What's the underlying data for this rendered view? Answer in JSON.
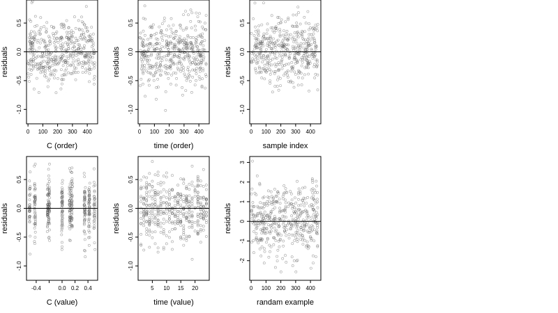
{
  "chart_data": [
    {
      "type": "scatter",
      "xlabel": "C (order)",
      "ylabel": "residuals",
      "xlim": [
        -10,
        470
      ],
      "ylim": [
        -1.25,
        0.9
      ],
      "xticks": [
        0,
        100,
        200,
        300,
        400
      ],
      "xtick_labels": [
        "0",
        "100",
        "200",
        "300",
        "400"
      ],
      "yticks": [
        -1.0,
        -0.5,
        0.0,
        0.5
      ],
      "ytick_labels": [
        "-1.0",
        "-0.5",
        "0.0",
        "0.5"
      ],
      "hline": 0,
      "points": {
        "n": 450,
        "x": [
          0,
          450
        ],
        "y_spread": 0.28,
        "seed": 11
      }
    },
    {
      "type": "scatter",
      "xlabel": "time (order)",
      "ylabel": "residuals",
      "xlim": [
        -10,
        470
      ],
      "ylim": [
        -1.25,
        0.9
      ],
      "xticks": [
        0,
        100,
        200,
        300,
        400
      ],
      "xtick_labels": [
        "0",
        "100",
        "200",
        "300",
        "400"
      ],
      "yticks": [
        -1.0,
        -0.5,
        0.0,
        0.5
      ],
      "ytick_labels": [
        "-1.0",
        "-0.5",
        "0.0",
        "0.5"
      ],
      "hline": 0,
      "points": {
        "n": 450,
        "x": [
          0,
          450
        ],
        "y_spread": 0.28,
        "seed": 23
      }
    },
    {
      "type": "scatter",
      "xlabel": "sample index",
      "ylabel": "residuals",
      "xlim": [
        -10,
        470
      ],
      "ylim": [
        -1.25,
        0.9
      ],
      "xticks": [
        0,
        100,
        200,
        300,
        400
      ],
      "xtick_labels": [
        "0",
        "100",
        "200",
        "300",
        "400"
      ],
      "yticks": [
        -1.0,
        -0.5,
        0.0,
        0.5
      ],
      "ytick_labels": [
        "-1.0",
        "-0.5",
        "0.0",
        "0.5"
      ],
      "hline": 0,
      "points": {
        "n": 450,
        "x": [
          0,
          450
        ],
        "y_spread": 0.28,
        "seed": 37
      }
    },
    {
      "type": "scatter",
      "xlabel": "C (value)",
      "ylabel": "residuals",
      "xlim": [
        -0.55,
        0.55
      ],
      "ylim": [
        -1.25,
        0.9
      ],
      "xticks": [
        -0.4,
        -0.2,
        0.0,
        0.2,
        0.4
      ],
      "xtick_labels": [
        "-0.4",
        "",
        "0.0",
        "0.2",
        "0.4"
      ],
      "yticks": [
        -1.0,
        -0.5,
        0.0,
        0.5
      ],
      "ytick_labels": [
        "-1.0",
        "-0.5",
        "0.0",
        "0.5"
      ],
      "hline": 0,
      "points": {
        "n": 450,
        "x_levels": [
          -0.5,
          -0.42,
          -0.22,
          -0.2,
          0.0,
          0.12,
          0.15,
          0.35,
          0.42,
          0.5
        ],
        "y_spread": 0.28,
        "seed": 53
      }
    },
    {
      "type": "scatter",
      "xlabel": "time (value)",
      "ylabel": "residuals",
      "xlim": [
        0,
        25
      ],
      "ylim": [
        -1.25,
        0.9
      ],
      "xticks": [
        5,
        10,
        15,
        20
      ],
      "xtick_labels": [
        "5",
        "10",
        "15",
        "20"
      ],
      "yticks": [
        -1.0,
        -0.5,
        0.0,
        0.5
      ],
      "ytick_labels": [
        "-1.0",
        "-0.5",
        "0.0",
        "0.5"
      ],
      "hline": 0,
      "points": {
        "n": 450,
        "x_int_range": [
          1,
          24
        ],
        "y_spread": 0.28,
        "seed": 71
      }
    },
    {
      "type": "scatter",
      "xlabel": "randam example",
      "ylabel": "residuals",
      "xlim": [
        -10,
        470
      ],
      "ylim": [
        -3,
        3.3
      ],
      "xticks": [
        0,
        100,
        200,
        300,
        400
      ],
      "xtick_labels": [
        "0",
        "100",
        "200",
        "300",
        "400"
      ],
      "yticks": [
        -2,
        -1,
        0,
        1,
        2,
        3
      ],
      "ytick_labels": [
        "-2",
        "-1",
        "0",
        "1",
        "2",
        "3"
      ],
      "hline": 0,
      "points": {
        "n": 450,
        "x": [
          0,
          450
        ],
        "y_spread": 1.0,
        "seed": 97
      }
    }
  ]
}
